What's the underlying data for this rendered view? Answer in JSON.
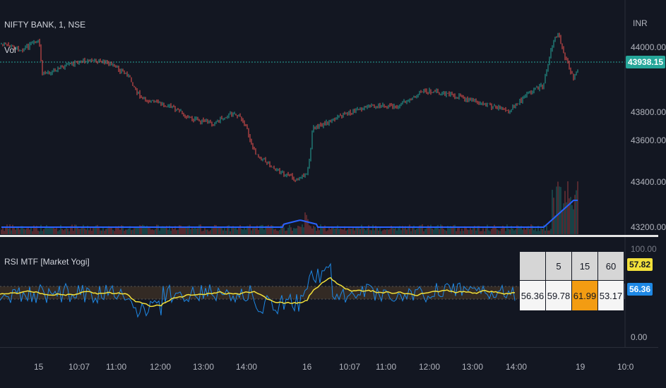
{
  "symbol_legend": "NIFTY BANK, 1, NSE",
  "volume_legend": "Vol",
  "indicator_legend": "RSI MTF [Market Yogi]",
  "currency": "INR",
  "price_axis": [
    "44000.00",
    "43800.00",
    "43600.00",
    "43400.00",
    "43200.00"
  ],
  "last_price": "43938.15",
  "rsi_axis": [
    "100.00",
    "0.00"
  ],
  "rsi_badges": {
    "rsi_slow": "57.82",
    "rsi_fast": "56.36"
  },
  "rsi_table": {
    "headers": [
      "",
      "5",
      "15",
      "60"
    ],
    "values": [
      "56.36",
      "59.78",
      "61.99",
      "53.17"
    ]
  },
  "time_axis": [
    "15",
    "10:07",
    "11:00",
    "12:00",
    "13:00",
    "14:00",
    "16",
    "10:07",
    "11:00",
    "12:00",
    "13:00",
    "14:00",
    "19",
    "10:0"
  ],
  "colors": {
    "background": "#131722",
    "up": "#26a69a",
    "down": "#ef5350",
    "volume_ma": "#2962ff",
    "rsi_fast": "#1e88e5",
    "rsi_slow": "#f2e03a",
    "last_price_tag": "#26a69a",
    "highlight_cell": "#f39c12"
  }
}
